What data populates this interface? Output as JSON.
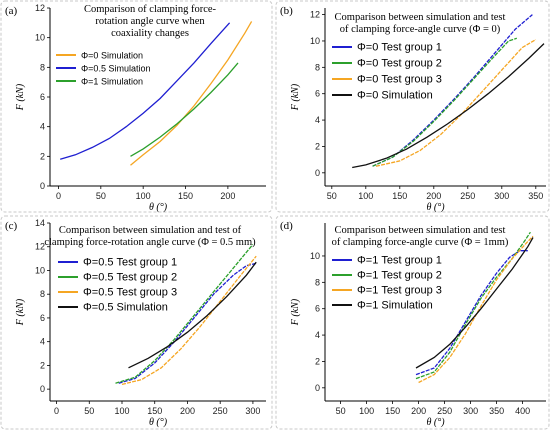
{
  "chart_data": [
    {
      "type": "line",
      "panel_label": "(a)",
      "title_lines": [
        "Comparison of clamping force-",
        "rotation angle curve when",
        "coaxiality changes"
      ],
      "xlabel": "θ (°)",
      "ylabel": "F (kN)",
      "xlim": [
        -10,
        245
      ],
      "ylim": [
        0,
        12
      ],
      "xticks": [
        0,
        50,
        100,
        150,
        200
      ],
      "yticks": [
        0,
        2,
        4,
        6,
        8,
        10,
        12
      ],
      "legend_position": "top-left",
      "series": [
        {
          "name": "Φ=0 Simulation",
          "color": "#f5a623",
          "style": "solid",
          "x": [
            85,
            100,
            120,
            140,
            160,
            180,
            200,
            220,
            228
          ],
          "y": [
            1.4,
            2.1,
            3.0,
            4.1,
            5.4,
            6.9,
            8.5,
            10.3,
            11.1
          ]
        },
        {
          "name": "Φ=0.5 Simulation",
          "color": "#1f1fd1",
          "style": "solid",
          "x": [
            2,
            20,
            40,
            60,
            80,
            100,
            120,
            140,
            160,
            180,
            202
          ],
          "y": [
            1.8,
            2.1,
            2.6,
            3.2,
            4.0,
            4.9,
            5.9,
            7.1,
            8.3,
            9.6,
            11.0
          ]
        },
        {
          "name": "Φ=1 Simulation",
          "color": "#2ca02c",
          "style": "solid",
          "x": [
            85,
            100,
            120,
            140,
            160,
            180,
            200,
            212
          ],
          "y": [
            2.0,
            2.5,
            3.3,
            4.2,
            5.2,
            6.3,
            7.5,
            8.3
          ]
        }
      ]
    },
    {
      "type": "line",
      "panel_label": "(b)",
      "title_lines": [
        "Comparison between simulation and test",
        "of clamping force-angle curve (Φ = 0)"
      ],
      "xlabel": "θ (°)",
      "ylabel": "F (kN)",
      "xlim": [
        40,
        365
      ],
      "ylim": [
        -1,
        12.5
      ],
      "xticks": [
        50,
        100,
        150,
        200,
        250,
        300,
        350
      ],
      "yticks": [
        0,
        2,
        4,
        6,
        8,
        10,
        12
      ],
      "legend_position": "top-left",
      "series": [
        {
          "name": "Φ=0 Test group 1",
          "color": "#1f1fd1",
          "style": "dashed",
          "x": [
            110,
            140,
            170,
            200,
            230,
            260,
            290,
            320,
            345
          ],
          "y": [
            0.5,
            1.2,
            2.5,
            4.0,
            5.6,
            7.3,
            9.1,
            10.9,
            12.0
          ]
        },
        {
          "name": "Φ=0 Test group 2",
          "color": "#2ca02c",
          "style": "dashed",
          "x": [
            110,
            140,
            170,
            200,
            230,
            260,
            290,
            310,
            322
          ],
          "y": [
            0.5,
            1.2,
            2.4,
            3.9,
            5.5,
            7.2,
            8.9,
            10.0,
            10.2
          ]
        },
        {
          "name": "Φ=0 Test group 3",
          "color": "#f5a623",
          "style": "dashed",
          "x": [
            115,
            150,
            180,
            210,
            240,
            270,
            300,
            330,
            350
          ],
          "y": [
            0.5,
            0.9,
            1.7,
            2.9,
            4.4,
            6.1,
            7.8,
            9.5,
            10.1
          ]
        },
        {
          "name": "Φ=0 Simulation",
          "color": "#111111",
          "style": "solid",
          "x": [
            80,
            100,
            130,
            160,
            190,
            220,
            250,
            280,
            310,
            340,
            362
          ],
          "y": [
            0.4,
            0.6,
            1.1,
            1.8,
            2.7,
            3.7,
            4.8,
            6.0,
            7.3,
            8.7,
            9.8
          ]
        }
      ]
    },
    {
      "type": "line",
      "panel_label": "(c)",
      "title_lines": [
        "Comparison between simulation and test of",
        "clamping force-rotation angle curve (Φ = 0.5 mm)"
      ],
      "xlabel": "θ (°)",
      "ylabel": "F (kN)",
      "xlim": [
        -10,
        320
      ],
      "ylim": [
        -1,
        14
      ],
      "xticks": [
        0,
        50,
        100,
        150,
        200,
        250,
        300
      ],
      "yticks": [
        0,
        2,
        4,
        6,
        8,
        10,
        12,
        14
      ],
      "legend_position": "top-left",
      "series": [
        {
          "name": "Φ=0.5 Test group 1",
          "color": "#1f1fd1",
          "style": "dashed",
          "x": [
            95,
            120,
            150,
            180,
            210,
            240,
            270,
            290,
            305
          ],
          "y": [
            0.5,
            0.9,
            2.2,
            4.0,
            6.0,
            8.0,
            9.6,
            10.4,
            10.6
          ]
        },
        {
          "name": "Φ=0.5 Test group 2",
          "color": "#2ca02c",
          "style": "dashed",
          "x": [
            90,
            120,
            150,
            180,
            210,
            240,
            270,
            300
          ],
          "y": [
            0.5,
            1.0,
            2.4,
            4.2,
            6.2,
            8.2,
            10.2,
            12.2
          ]
        },
        {
          "name": "Φ=0.5 Test group 3",
          "color": "#f5a623",
          "style": "dashed",
          "x": [
            100,
            130,
            160,
            190,
            220,
            250,
            280,
            305
          ],
          "y": [
            0.4,
            0.8,
            1.8,
            3.4,
            5.3,
            7.4,
            9.5,
            11.2
          ]
        },
        {
          "name": "Φ=0.5 Simulation",
          "color": "#111111",
          "style": "solid",
          "x": [
            110,
            140,
            170,
            200,
            230,
            260,
            290,
            305
          ],
          "y": [
            1.8,
            2.6,
            3.6,
            4.8,
            6.2,
            7.8,
            9.6,
            10.7
          ]
        }
      ]
    },
    {
      "type": "line",
      "panel_label": "(d)",
      "title_lines": [
        "Comparison between simulation and test",
        "of clamping force-angle curve (Φ = 1mm)"
      ],
      "xlabel": "θ (°)",
      "ylabel": "F (kN)",
      "xlim": [
        20,
        445
      ],
      "ylim": [
        -1,
        12.5
      ],
      "xticks": [
        50,
        100,
        150,
        200,
        250,
        300,
        350,
        400
      ],
      "yticks": [
        0,
        2,
        4,
        6,
        8,
        10
      ],
      "legend_position": "top-left",
      "series": [
        {
          "name": "Φ=1 Test group 1",
          "color": "#1f1fd1",
          "style": "dashed",
          "x": [
            195,
            230,
            260,
            290,
            320,
            350,
            375,
            395,
            410
          ],
          "y": [
            1.0,
            1.5,
            3.0,
            5.0,
            7.0,
            8.7,
            9.9,
            10.4,
            10.4
          ]
        },
        {
          "name": "Φ=1 Test group 2",
          "color": "#2ca02c",
          "style": "dashed",
          "x": [
            195,
            230,
            260,
            290,
            320,
            350,
            380,
            405,
            415
          ],
          "y": [
            0.7,
            1.2,
            2.7,
            4.8,
            6.8,
            8.4,
            9.8,
            11.2,
            11.8
          ]
        },
        {
          "name": "Φ=1 Test group 3",
          "color": "#f5a623",
          "style": "dashed",
          "x": [
            200,
            230,
            260,
            290,
            320,
            350,
            380,
            410,
            420
          ],
          "y": [
            0.4,
            1.0,
            2.3,
            4.1,
            6.2,
            8.2,
            9.8,
            11.1,
            11.5
          ]
        },
        {
          "name": "Φ=1 Simulation",
          "color": "#111111",
          "style": "solid",
          "x": [
            195,
            230,
            260,
            290,
            320,
            350,
            380,
            410,
            420
          ],
          "y": [
            1.5,
            2.3,
            3.3,
            4.6,
            6.0,
            7.5,
            9.0,
            10.7,
            11.4
          ]
        }
      ]
    }
  ]
}
